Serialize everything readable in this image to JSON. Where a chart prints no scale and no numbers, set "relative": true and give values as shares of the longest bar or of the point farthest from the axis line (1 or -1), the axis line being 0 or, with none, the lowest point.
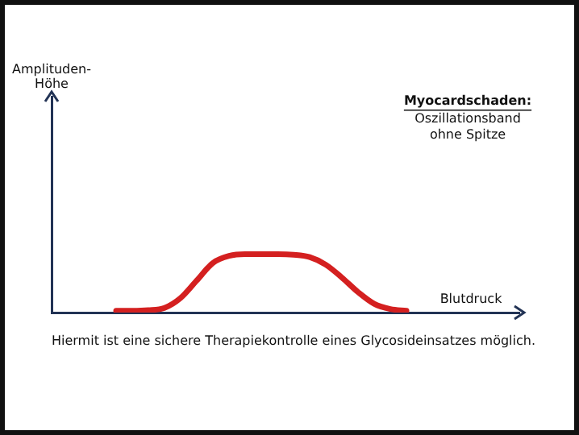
{
  "chart_data": {
    "type": "line",
    "title": "Myocardschaden:",
    "subtitle": "Oszillationsband ohne Spitze",
    "xlabel": "Blutdruck",
    "annotations": [
      "Amplituden-Höhe",
      "Hiermit ist eine sichere Therapiekontrolle eines Glycosideinsatzes möglich."
    ],
    "categories": [
      null,
      null,
      null,
      null,
      null,
      null,
      null,
      null,
      null,
      null,
      null,
      null,
      null,
      null,
      null,
      null,
      null,
      null,
      null,
      null,
      null,
      null,
      null,
      null,
      null,
      null,
      null,
      null,
      null,
      null
    ],
    "values": [
      null,
      null,
      null,
      null,
      0.03,
      0.03,
      0.04,
      0.08,
      0.25,
      0.55,
      0.85,
      0.97,
      1,
      1,
      1,
      0.99,
      0.95,
      0.82,
      0.6,
      0.35,
      0.15,
      0.06,
      0.03,
      null,
      null,
      null,
      null,
      null,
      null,
      null
    ],
    "color": "#d42020",
    "relative": true,
    "tick_labels": false,
    "grid": false,
    "legend": false,
    "marker": "none",
    "line_style": "solid"
  }
}
